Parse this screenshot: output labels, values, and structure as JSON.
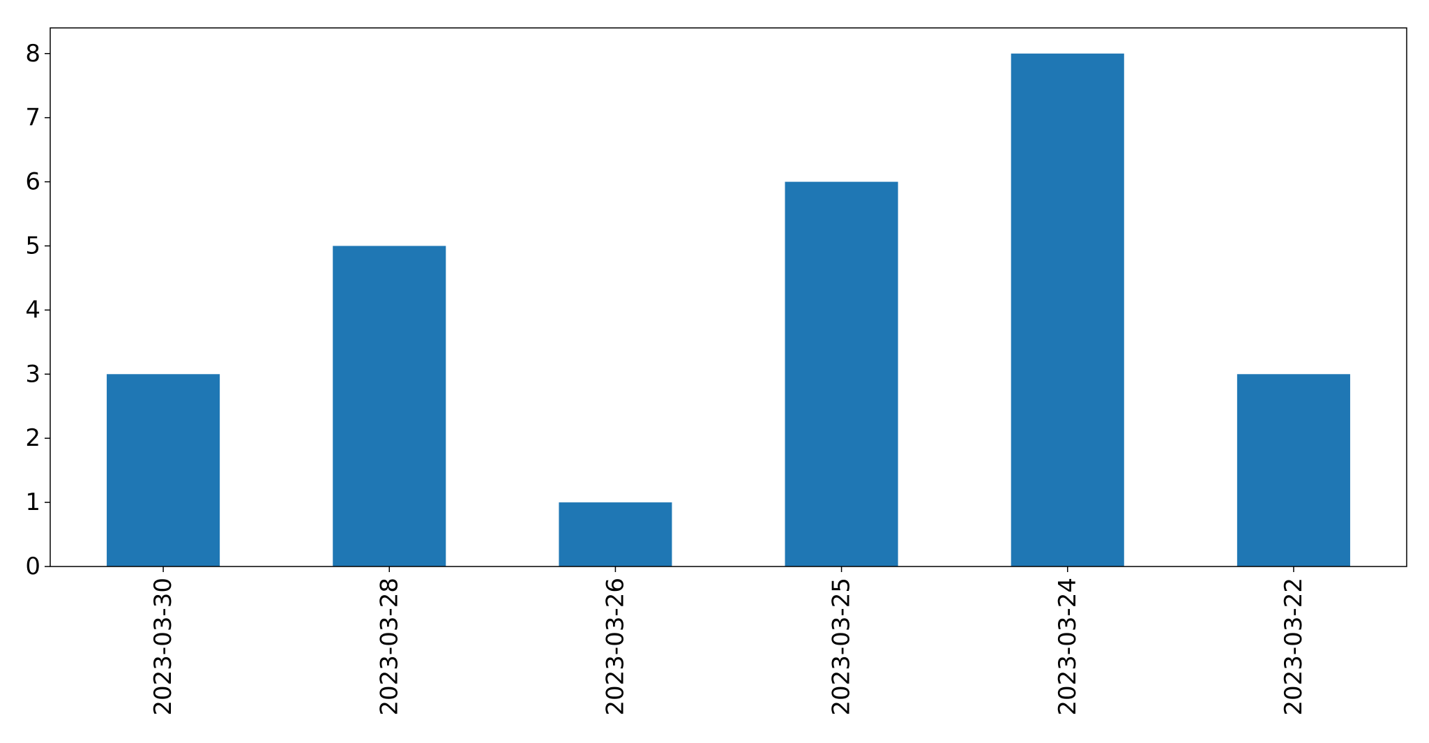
{
  "chart_data": {
    "type": "bar",
    "title": "",
    "xlabel": "",
    "ylabel": "",
    "categories": [
      "2023-03-30",
      "2023-03-28",
      "2023-03-26",
      "2023-03-25",
      "2023-03-24",
      "2023-03-22"
    ],
    "values": [
      3,
      5,
      1,
      6,
      8,
      3
    ],
    "ylim": [
      0,
      8.4
    ],
    "yticks": [
      0,
      1,
      2,
      3,
      4,
      5,
      6,
      7,
      8
    ],
    "grid": false,
    "bar_color": "#1f77b4"
  }
}
